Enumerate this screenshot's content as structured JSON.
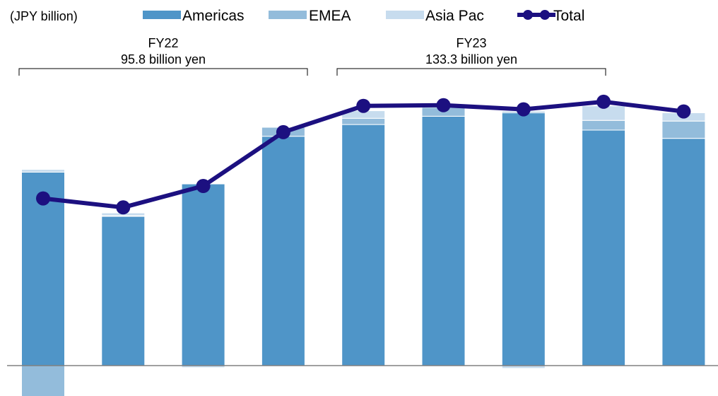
{
  "unit_label": "(JPY billion)",
  "colors": {
    "americas": "#4f95c8",
    "emea": "#93bcdb",
    "asia_pac": "#c7dcee",
    "total": "#1c1080",
    "baseline": "#808080"
  },
  "legend": [
    {
      "name": "Americas",
      "color_key": "americas",
      "kind": "bar"
    },
    {
      "name": "EMEA",
      "color_key": "emea",
      "kind": "bar"
    },
    {
      "name": "Asia Pac",
      "color_key": "asia_pac",
      "kind": "bar"
    },
    {
      "name": "Total",
      "color_key": "total",
      "kind": "line"
    }
  ],
  "groups": [
    {
      "label": "FY22",
      "sublabel": "95.8 billion yen",
      "first_bar": 0,
      "last_bar": 3
    },
    {
      "label": "FY23",
      "sublabel": "133.3 billion yen",
      "first_bar": 4,
      "last_bar": 7
    }
  ],
  "chart_data": {
    "type": "bar",
    "stacked": true,
    "categories": [
      "",
      "",
      "",
      "",
      "",
      "",
      "",
      "",
      ""
    ],
    "series": [
      {
        "name": "Americas",
        "values": [
          28.0,
          21.6,
          26.3,
          33.2,
          34.9,
          36.1,
          36.6,
          34.1,
          32.9
        ]
      },
      {
        "name": "EMEA",
        "values": [
          -6.3,
          0.1,
          0.0,
          1.3,
          0.9,
          1.3,
          0.2,
          1.4,
          2.5
        ]
      },
      {
        "name": "Asia Pac",
        "values": [
          0.4,
          0.4,
          -0.3,
          0.0,
          1.1,
          0.1,
          -0.4,
          2.1,
          1.2
        ]
      },
      {
        "name": "Total",
        "type": "line",
        "values": [
          24.2,
          22.9,
          26.0,
          33.8,
          37.6,
          37.7,
          37.1,
          38.2,
          36.8
        ]
      }
    ],
    "ylim": [
      -7,
      43
    ],
    "grid": false,
    "legend_position": "top"
  }
}
